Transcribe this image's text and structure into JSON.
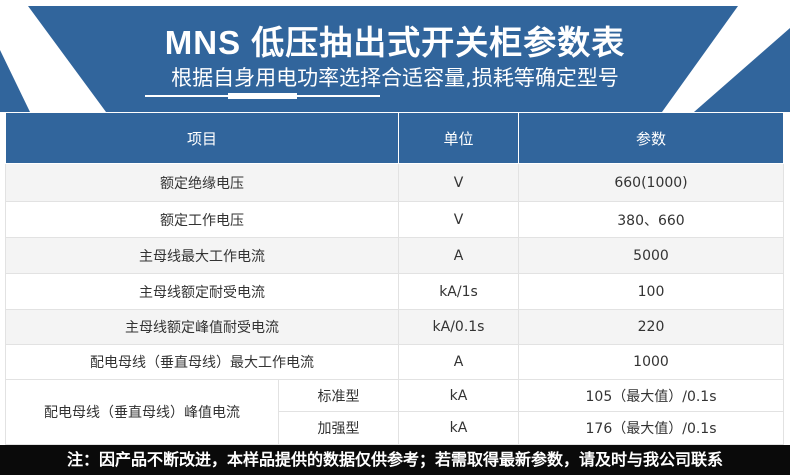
{
  "header": {
    "title": "MNS 低压抽出式开关柜参数表",
    "subtitle": "根据自身用电功率选择合适容量,损耗等确定型号",
    "color": "#31659c"
  },
  "table": {
    "headers": [
      "项目",
      "单位",
      "参数"
    ],
    "rows": [
      {
        "item": "额定绝缘电压",
        "unit": "V",
        "value": "660(1000)"
      },
      {
        "item": "额定工作电压",
        "unit": "V",
        "value": "380、660"
      },
      {
        "item": "主母线最大工作电流",
        "unit": "A",
        "value": "5000"
      },
      {
        "item": "主母线额定耐受电流",
        "unit": "kA/1s",
        "value": "100"
      },
      {
        "item": "主母线额定峰值耐受电流",
        "unit": "kA/0.1s",
        "value": "220"
      },
      {
        "item": "配电母线（垂直母线）最大工作电流",
        "unit": "A",
        "value": "1000"
      }
    ],
    "group": {
      "item": "配电母线（垂直母线）峰值电流",
      "rows": [
        {
          "type": "标准型",
          "unit": "kA",
          "value": "105（最大值）/0.1s"
        },
        {
          "type": "加强型",
          "unit": "kA",
          "value": "176（最大值）/0.1s"
        }
      ]
    }
  },
  "footer": {
    "note": "注：因产品不断改进，本样品提供的数据仅供参考；若需取得最新参数，请及时与我公司联系"
  }
}
